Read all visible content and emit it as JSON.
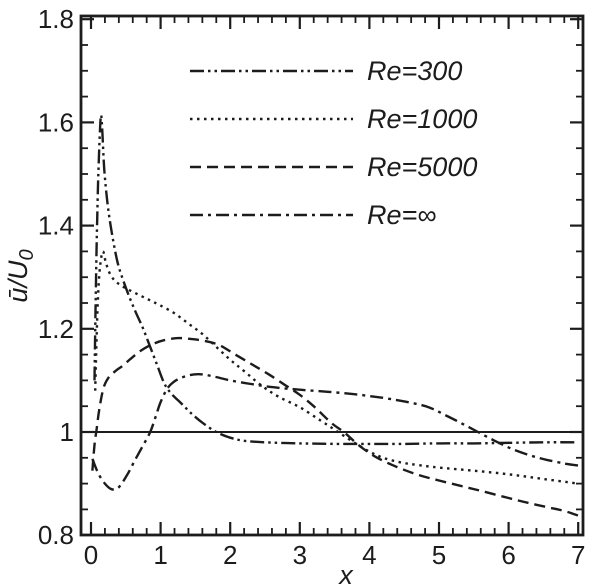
{
  "figure": {
    "background": "#ffffff",
    "ink_color": "#1c1c1c"
  },
  "chart_data": {
    "type": "line",
    "title": "",
    "xlabel": "x",
    "ylabel": "ū/U₀",
    "ylabel_parts": [
      "ū/U",
      "0"
    ],
    "xlim": [
      -0.14,
      7.07
    ],
    "ylim": [
      0.795,
      1.805
    ],
    "x_major_ticks": [
      0,
      1,
      2,
      3,
      4,
      5,
      6,
      7
    ],
    "x_tick_labels": [
      "0",
      "1",
      "2",
      "3",
      "4",
      "5",
      "6",
      "7"
    ],
    "x_minor_step": 0.2,
    "y_major_ticks": [
      0.8,
      1.0,
      1.2,
      1.4,
      1.6,
      1.8
    ],
    "y_tick_labels": [
      "0.8",
      "1",
      "1.2",
      "1.4",
      "1.6",
      "1.8"
    ],
    "y_minor_step": 0.05,
    "grid": false,
    "legend_position": "upper-center",
    "reference_line": {
      "y": 1.0,
      "style": "solid"
    },
    "series": [
      {
        "name": "Re=300",
        "dash_style": "dash-dot-dot",
        "points": [
          [
            0.05,
            1.1
          ],
          [
            0.07,
            1.28
          ],
          [
            0.09,
            1.42
          ],
          [
            0.11,
            1.52
          ],
          [
            0.14,
            1.61
          ],
          [
            0.16,
            1.59
          ],
          [
            0.19,
            1.51
          ],
          [
            0.24,
            1.44
          ],
          [
            0.3,
            1.385
          ],
          [
            0.38,
            1.33
          ],
          [
            0.46,
            1.295
          ],
          [
            0.55,
            1.262
          ],
          [
            0.65,
            1.23
          ],
          [
            0.75,
            1.2
          ],
          [
            0.85,
            1.165
          ],
          [
            0.95,
            1.13
          ],
          [
            1.05,
            1.095
          ],
          [
            1.15,
            1.075
          ],
          [
            1.3,
            1.055
          ],
          [
            1.45,
            1.035
          ],
          [
            1.6,
            1.018
          ],
          [
            1.8,
            1.0
          ],
          [
            2.0,
            0.989
          ],
          [
            2.2,
            0.983
          ],
          [
            2.5,
            0.98
          ],
          [
            3.0,
            0.978
          ],
          [
            3.5,
            0.977
          ],
          [
            4.0,
            0.977
          ],
          [
            4.5,
            0.977
          ],
          [
            5.0,
            0.978
          ],
          [
            5.5,
            0.978
          ],
          [
            6.0,
            0.979
          ],
          [
            6.5,
            0.98
          ],
          [
            7.0,
            0.98
          ]
        ]
      },
      {
        "name": "Re=1000",
        "dash_style": "dotted",
        "points": [
          [
            0.06,
            1.08
          ],
          [
            0.08,
            1.18
          ],
          [
            0.1,
            1.26
          ],
          [
            0.13,
            1.32
          ],
          [
            0.17,
            1.35
          ],
          [
            0.21,
            1.33
          ],
          [
            0.26,
            1.31
          ],
          [
            0.33,
            1.295
          ],
          [
            0.42,
            1.285
          ],
          [
            0.55,
            1.275
          ],
          [
            0.7,
            1.265
          ],
          [
            0.85,
            1.255
          ],
          [
            1.0,
            1.245
          ],
          [
            1.2,
            1.23
          ],
          [
            1.4,
            1.21
          ],
          [
            1.6,
            1.19
          ],
          [
            1.8,
            1.165
          ],
          [
            2.0,
            1.14
          ],
          [
            2.2,
            1.118
          ],
          [
            2.45,
            1.09
          ],
          [
            2.7,
            1.068
          ],
          [
            3.0,
            1.048
          ],
          [
            3.3,
            1.022
          ],
          [
            3.55,
            1.0
          ],
          [
            3.8,
            0.978
          ],
          [
            4.0,
            0.962
          ],
          [
            4.2,
            0.95
          ],
          [
            4.45,
            0.941
          ],
          [
            4.7,
            0.936
          ],
          [
            5.0,
            0.931
          ],
          [
            5.5,
            0.925
          ],
          [
            6.0,
            0.918
          ],
          [
            6.5,
            0.909
          ],
          [
            7.0,
            0.9
          ]
        ]
      },
      {
        "name": "Re=5000",
        "dash_style": "dashed",
        "points": [
          [
            0.02,
            0.925
          ],
          [
            0.05,
            0.975
          ],
          [
            0.08,
            1.005
          ],
          [
            0.12,
            1.045
          ],
          [
            0.18,
            1.085
          ],
          [
            0.25,
            1.105
          ],
          [
            0.35,
            1.118
          ],
          [
            0.45,
            1.128
          ],
          [
            0.58,
            1.143
          ],
          [
            0.72,
            1.158
          ],
          [
            0.88,
            1.17
          ],
          [
            1.05,
            1.178
          ],
          [
            1.25,
            1.182
          ],
          [
            1.45,
            1.18
          ],
          [
            1.65,
            1.176
          ],
          [
            1.85,
            1.168
          ],
          [
            2.05,
            1.152
          ],
          [
            2.3,
            1.132
          ],
          [
            2.55,
            1.112
          ],
          [
            2.8,
            1.09
          ],
          [
            3.0,
            1.072
          ],
          [
            3.2,
            1.05
          ],
          [
            3.45,
            1.018
          ],
          [
            3.65,
            0.998
          ],
          [
            3.85,
            0.974
          ],
          [
            4.1,
            0.951
          ],
          [
            4.4,
            0.932
          ],
          [
            4.7,
            0.917
          ],
          [
            5.0,
            0.906
          ],
          [
            5.3,
            0.896
          ],
          [
            5.6,
            0.886
          ],
          [
            6.0,
            0.872
          ],
          [
            6.3,
            0.862
          ],
          [
            6.6,
            0.853
          ],
          [
            6.8,
            0.847
          ],
          [
            7.0,
            0.838
          ]
        ]
      },
      {
        "name": "Re=∞",
        "dash_style": "dash-dot",
        "points": [
          [
            0.02,
            0.948
          ],
          [
            0.1,
            0.921
          ],
          [
            0.2,
            0.9
          ],
          [
            0.3,
            0.889
          ],
          [
            0.4,
            0.893
          ],
          [
            0.52,
            0.917
          ],
          [
            0.63,
            0.945
          ],
          [
            0.74,
            0.972
          ],
          [
            0.85,
            1.0
          ],
          [
            0.93,
            1.03
          ],
          [
            1.0,
            1.058
          ],
          [
            1.1,
            1.085
          ],
          [
            1.22,
            1.1
          ],
          [
            1.38,
            1.109
          ],
          [
            1.55,
            1.112
          ],
          [
            1.75,
            1.108
          ],
          [
            2.0,
            1.1
          ],
          [
            2.3,
            1.093
          ],
          [
            2.6,
            1.087
          ],
          [
            3.0,
            1.082
          ],
          [
            3.4,
            1.078
          ],
          [
            3.8,
            1.073
          ],
          [
            4.2,
            1.066
          ],
          [
            4.55,
            1.058
          ],
          [
            4.85,
            1.048
          ],
          [
            5.1,
            1.032
          ],
          [
            5.35,
            1.015
          ],
          [
            5.56,
            1.0
          ],
          [
            5.8,
            0.983
          ],
          [
            6.05,
            0.967
          ],
          [
            6.3,
            0.955
          ],
          [
            6.55,
            0.946
          ],
          [
            6.8,
            0.939
          ],
          [
            7.0,
            0.935
          ]
        ]
      }
    ]
  }
}
